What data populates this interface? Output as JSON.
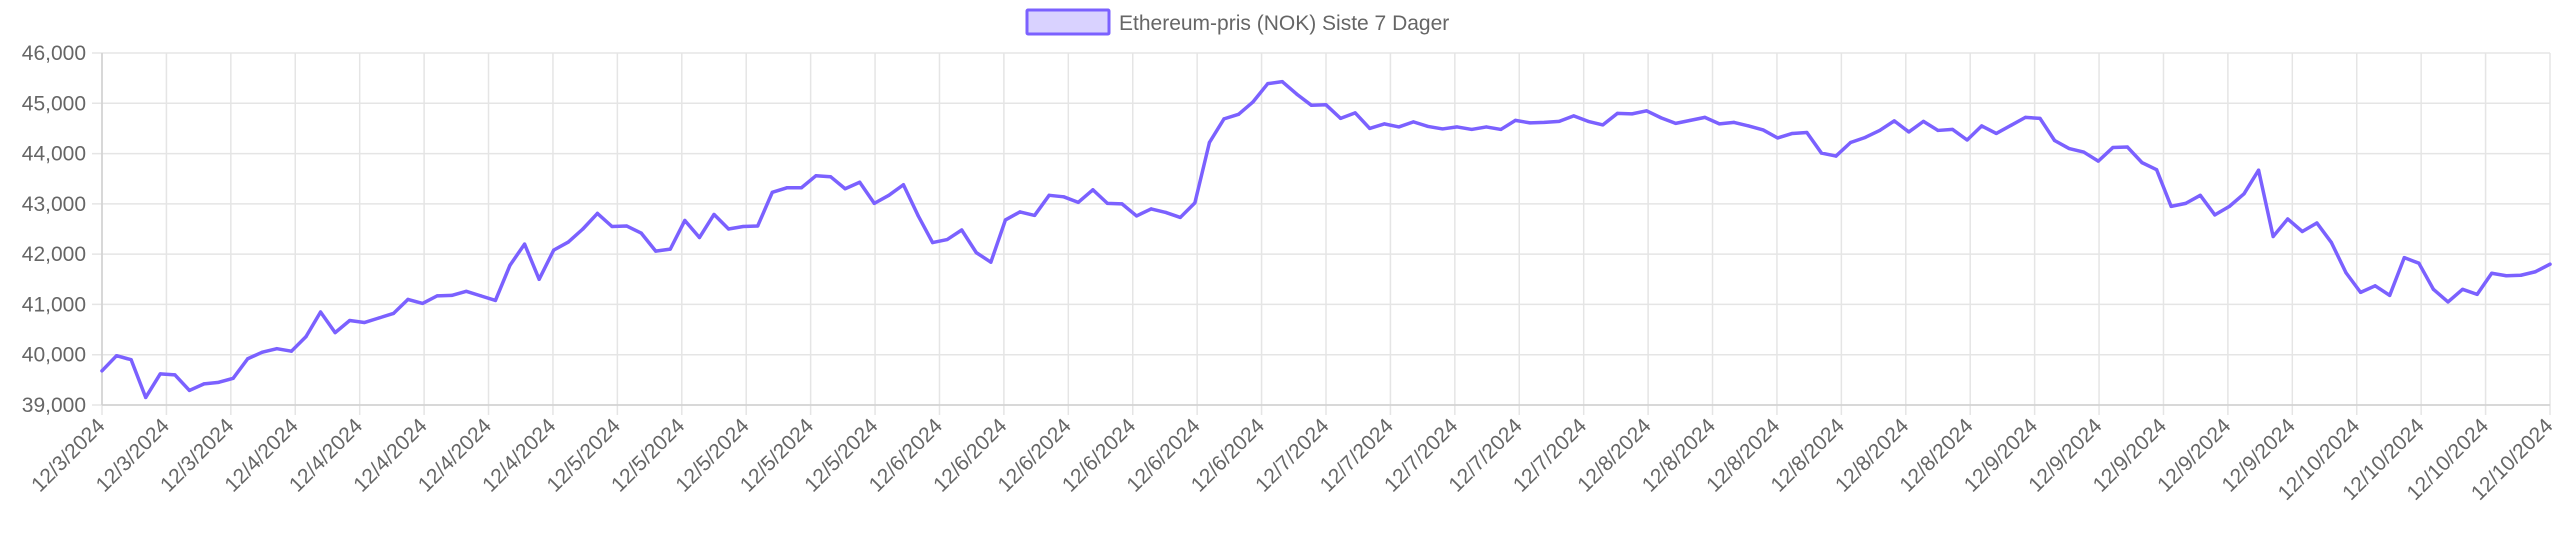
{
  "chart_data": {
    "type": "line",
    "legend": {
      "label": "Ethereum-pris (NOK) Siste 7 Dager",
      "position": "top-center"
    },
    "ylim": [
      39000,
      46000
    ],
    "yticks": [
      "39,000",
      "40,000",
      "41,000",
      "42,000",
      "43,000",
      "44,000",
      "45,000",
      "46,000"
    ],
    "grid": true,
    "colors": {
      "line": "#7b61ff",
      "legend_fill": "#d9d2ff"
    },
    "x_tick_labels": [
      "12/3/2024",
      "12/3/2024",
      "12/3/2024",
      "12/4/2024",
      "12/4/2024",
      "12/4/2024",
      "12/4/2024",
      "12/4/2024",
      "12/5/2024",
      "12/5/2024",
      "12/5/2024",
      "12/5/2024",
      "12/5/2024",
      "12/6/2024",
      "12/6/2024",
      "12/6/2024",
      "12/6/2024",
      "12/6/2024",
      "12/6/2024",
      "12/7/2024",
      "12/7/2024",
      "12/7/2024",
      "12/7/2024",
      "12/7/2024",
      "12/8/2024",
      "12/8/2024",
      "12/8/2024",
      "12/8/2024",
      "12/8/2024",
      "12/8/2024",
      "12/9/2024",
      "12/9/2024",
      "12/9/2024",
      "12/9/2024",
      "12/9/2024",
      "12/10/2024",
      "12/10/2024",
      "12/10/2024",
      "12/10/2024"
    ],
    "series": [
      {
        "name": "Ethereum-pris (NOK) Siste 7 Dager",
        "values": [
          39680,
          39980,
          39900,
          39150,
          39620,
          39600,
          39290,
          39420,
          39450,
          39530,
          39920,
          40050,
          40120,
          40070,
          40360,
          40850,
          40440,
          40680,
          40640,
          40730,
          40820,
          41100,
          41020,
          41170,
          41180,
          41260,
          41170,
          41080,
          41780,
          42200,
          41500,
          42080,
          42240,
          42500,
          42810,
          42550,
          42560,
          42420,
          42060,
          42100,
          42670,
          42330,
          42790,
          42500,
          42550,
          42560,
          43230,
          43320,
          43320,
          43560,
          43540,
          43300,
          43430,
          43010,
          43170,
          43380,
          42770,
          42230,
          42290,
          42480,
          42030,
          41840,
          42680,
          42840,
          42770,
          43170,
          43140,
          43030,
          43280,
          43010,
          43000,
          42760,
          42900,
          42830,
          42730,
          43020,
          44220,
          44690,
          44780,
          45030,
          45390,
          45430,
          45180,
          44960,
          44970,
          44700,
          44810,
          44500,
          44590,
          44530,
          44630,
          44540,
          44490,
          44530,
          44480,
          44530,
          44480,
          44660,
          44610,
          44620,
          44640,
          44750,
          44640,
          44570,
          44800,
          44790,
          44850,
          44710,
          44600,
          44660,
          44720,
          44590,
          44620,
          44550,
          44470,
          44310,
          44400,
          44420,
          44010,
          43950,
          44220,
          44320,
          44460,
          44650,
          44430,
          44640,
          44460,
          44480,
          44270,
          44550,
          44400,
          44560,
          44720,
          44700,
          44260,
          44100,
          44030,
          43850,
          44120,
          44130,
          43820,
          43680,
          42950,
          43010,
          43170,
          42780,
          42950,
          43200,
          43670,
          42350,
          42700,
          42450,
          42620,
          42230,
          41630,
          41240,
          41370,
          41180,
          41930,
          41820,
          41300,
          41050,
          41300,
          41200,
          41620,
          41570,
          41580,
          41650,
          41800
        ]
      }
    ]
  }
}
